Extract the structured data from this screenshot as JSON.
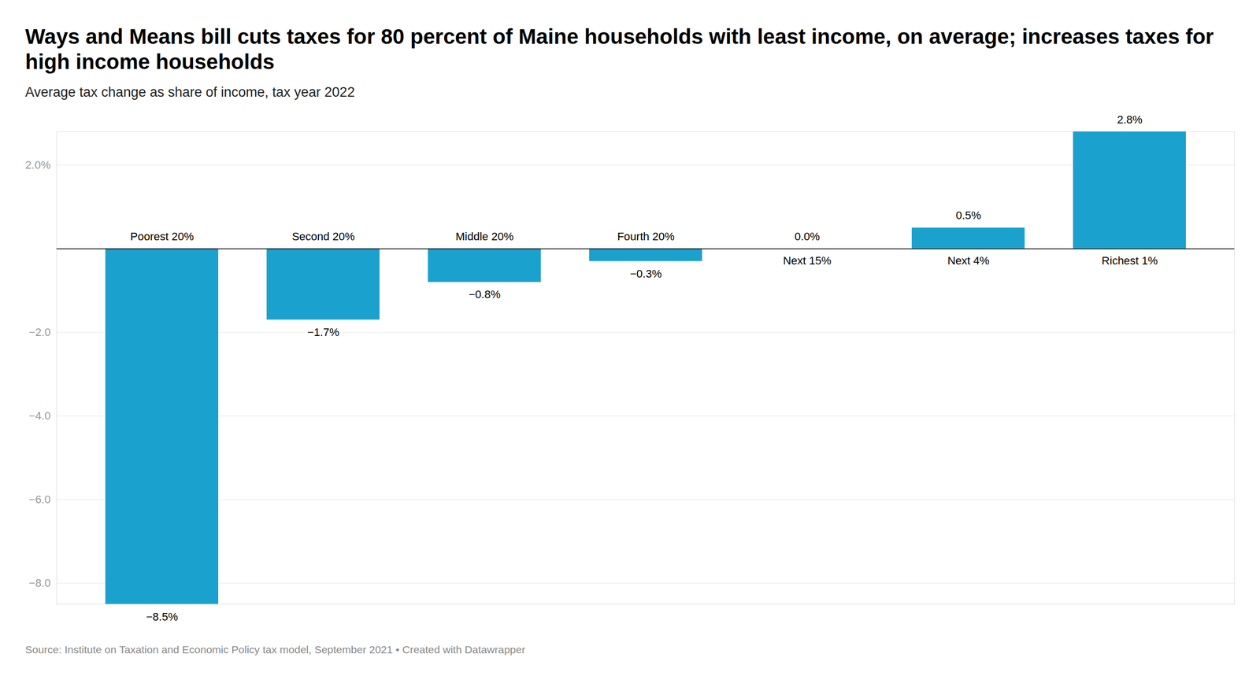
{
  "chart_data": {
    "type": "bar",
    "title": "Ways and Means bill cuts taxes for 80 percent of Maine households with least income, on average; increases taxes for high income households",
    "subtitle": "Average tax change as share of income, tax year 2022",
    "caption": "Source: Institute on Taxation and Economic Policy tax model, September 2021 • Created with Datawrapper",
    "categories": [
      "Poorest 20%",
      "Second 20%",
      "Middle 20%",
      "Fourth 20%",
      "Next 15%",
      "Next 4%",
      "Richest 1%"
    ],
    "values": [
      -8.5,
      -1.7,
      -0.8,
      -0.3,
      0.0,
      0.5,
      2.8
    ],
    "value_labels": [
      "−8.5%",
      "−1.7%",
      "−0.8%",
      "−0.3%",
      "0.0%",
      "0.5%",
      "2.8%"
    ],
    "color": "#1ba1cd",
    "ylim": [
      -8.5,
      2.8
    ],
    "yticks": [
      {
        "value": 2,
        "label": "2.0%"
      },
      {
        "value": -2,
        "label": "−2.0"
      },
      {
        "value": -4,
        "label": "−4.0"
      },
      {
        "value": -6,
        "label": "−6.0"
      },
      {
        "value": -8,
        "label": "−8.0"
      }
    ],
    "grid": true,
    "data_labels": true
  }
}
